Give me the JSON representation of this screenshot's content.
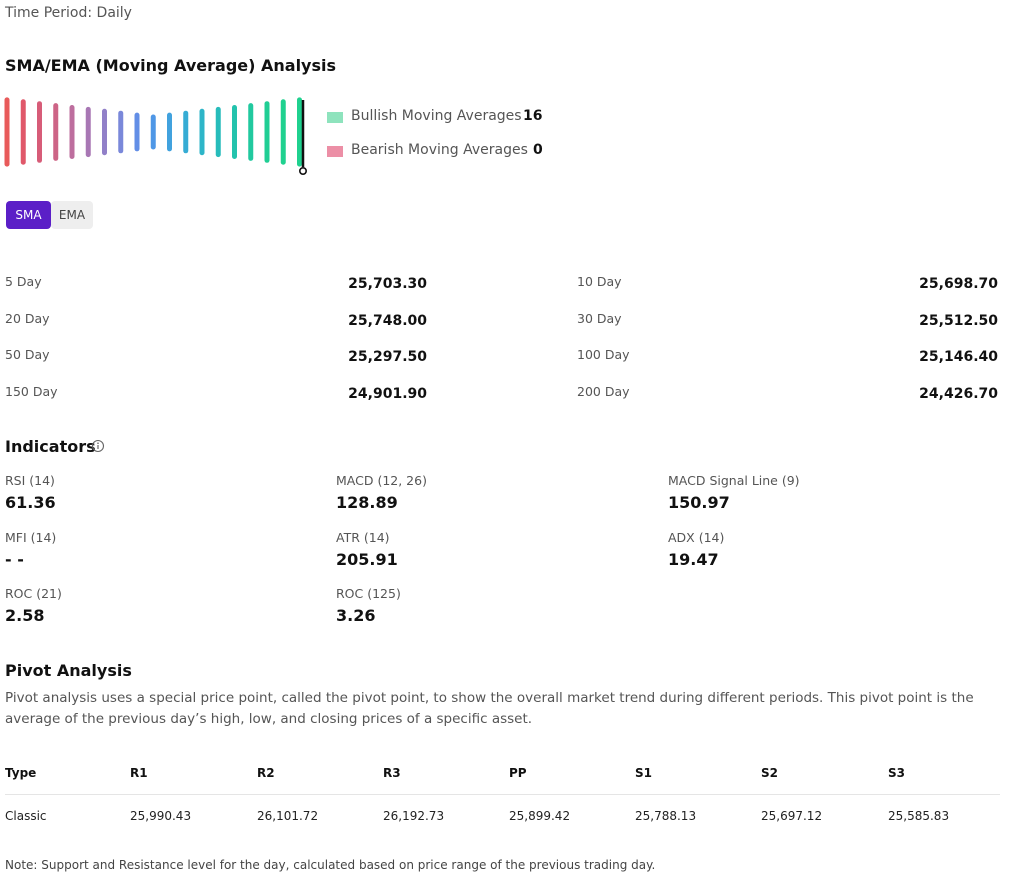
{
  "time_period": "Time Period: Daily",
  "moving_average": {
    "title": "SMA/EMA (Moving Average) Analysis",
    "legend": [
      {
        "label": "Bullish Moving Averages",
        "count": 16,
        "color": "#8ee3bd"
      },
      {
        "label": "Bearish Moving Averages",
        "count": 0,
        "color": "#ec8fa6"
      }
    ],
    "tabs": [
      "SMA",
      "EMA"
    ],
    "rows": [
      {
        "label": "5 Day",
        "value": "25,703.30"
      },
      {
        "label": "10 Day",
        "value": "25,698.70"
      },
      {
        "label": "20 Day",
        "value": "25,748.00"
      },
      {
        "label": "30 Day",
        "value": "25,512.50"
      },
      {
        "label": "50 Day",
        "value": "25,297.50"
      },
      {
        "label": "100 Day",
        "value": "25,146.40"
      },
      {
        "label": "150 Day",
        "value": "24,901.90"
      },
      {
        "label": "200 Day",
        "value": "24,426.70"
      }
    ]
  },
  "indicators": {
    "title": "Indicators",
    "items": [
      {
        "label": "RSI (14)",
        "value": "61.36"
      },
      {
        "label": "MACD (12, 26)",
        "value": "128.89"
      },
      {
        "label": "MACD Signal Line (9)",
        "value": "150.97"
      },
      {
        "label": "MFI (14)",
        "value": "- -"
      },
      {
        "label": "ATR (14)",
        "value": "205.91"
      },
      {
        "label": "ADX (14)",
        "value": "19.47"
      },
      {
        "label": "ROC (21)",
        "value": "2.58"
      },
      {
        "label": "ROC (125)",
        "value": "3.26"
      }
    ]
  },
  "pivot": {
    "title": "Pivot Analysis",
    "description": "Pivot analysis uses a special price point, called the pivot point, to show the overall market trend during different periods. This pivot point is the average of the previous day’s high, low, and closing prices of a specific asset.",
    "table": {
      "headers": [
        "Type",
        "R1",
        "R2",
        "R3",
        "PP",
        "S1",
        "S2",
        "S3"
      ],
      "rows": [
        [
          "Classic",
          "25,990.43",
          "26,101.72",
          "26,192.73",
          "25,899.42",
          "25,788.13",
          "25,697.12",
          "25,585.83"
        ]
      ]
    },
    "note": "Note: Support and Resistance level for the day, calculated based on price range of the previous trading day."
  }
}
